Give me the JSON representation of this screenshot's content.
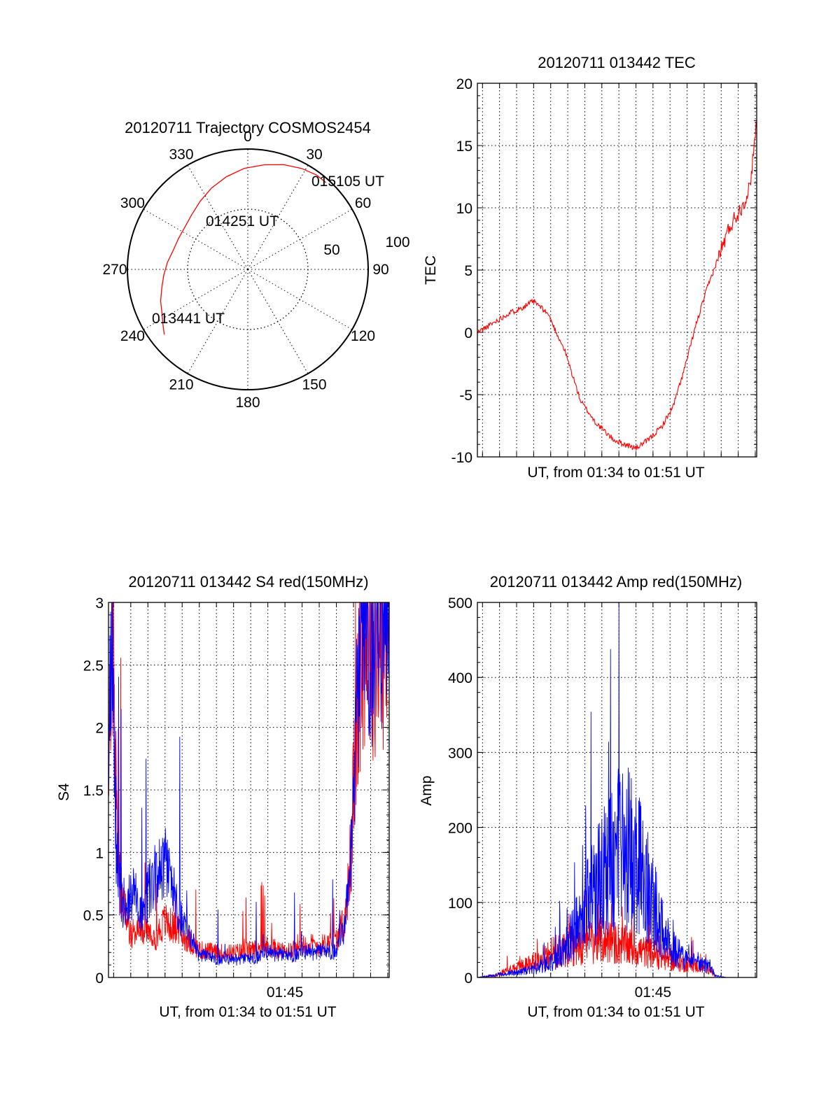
{
  "chart_data": [
    {
      "id": "polar",
      "type": "polar-trajectory",
      "title": "20120711 Trajectory COSMOS2454",
      "azimuth_labels": [
        "0",
        "30",
        "60",
        "90",
        "120",
        "150",
        "180",
        "210",
        "240",
        "270",
        "300",
        "330"
      ],
      "radius_labels": [
        "50",
        "100"
      ],
      "rmax": 100,
      "trajectory": {
        "color": "#ff0000",
        "points": [
          {
            "az": 232,
            "r": 88
          },
          {
            "az": 237,
            "r": 84
          },
          {
            "az": 243,
            "r": 80
          },
          {
            "az": 250,
            "r": 77
          },
          {
            "az": 258,
            "r": 73
          },
          {
            "az": 266,
            "r": 70
          },
          {
            "az": 275,
            "r": 67
          },
          {
            "az": 284,
            "r": 64
          },
          {
            "az": 294,
            "r": 63
          },
          {
            "az": 304,
            "r": 63
          },
          {
            "az": 314,
            "r": 65
          },
          {
            "az": 325,
            "r": 69
          },
          {
            "az": 336,
            "r": 74
          },
          {
            "az": 347,
            "r": 79
          },
          {
            "az": 358,
            "r": 84
          },
          {
            "az": 9,
            "r": 88
          },
          {
            "az": 19,
            "r": 92
          },
          {
            "az": 28,
            "r": 95
          },
          {
            "az": 36,
            "r": 97
          },
          {
            "az": 42,
            "r": 97
          }
        ]
      },
      "annotations": [
        {
          "text": "015105 UT",
          "az": 40,
          "r": 98
        },
        {
          "text": "014251 UT",
          "az": 337,
          "r": 43
        },
        {
          "text": "013441 UT",
          "az": 237,
          "r": 82
        }
      ]
    },
    {
      "id": "tec",
      "type": "line",
      "title": "20120711 013442 TEC",
      "xlabel": "UT, from 01:34 to 01:51 UT",
      "ylabel": "TEC",
      "xlim": [
        "01:34:42",
        "01:51:05"
      ],
      "ylim": [
        -10,
        20
      ],
      "yticks": [
        -10,
        -5,
        0,
        5,
        10,
        15,
        20
      ],
      "xticks": [],
      "grid": true,
      "series": [
        {
          "color": "#ff0000",
          "x": [
            "01:34:42",
            "01:35:20",
            "01:36:30",
            "01:37:20",
            "01:38:00",
            "01:38:50",
            "01:39:50",
            "01:40:45",
            "01:41:40",
            "01:42:40",
            "01:43:20",
            "01:44:00",
            "01:44:40",
            "01:45:30",
            "01:46:10",
            "01:46:50",
            "01:47:30",
            "01:48:10",
            "01:48:50",
            "01:49:30",
            "01:50:10",
            "01:50:40",
            "01:51:05"
          ],
          "y": [
            0.0,
            0.5,
            1.5,
            2.0,
            2.5,
            1.5,
            -1.5,
            -5.5,
            -7.3,
            -8.6,
            -9.0,
            -9.3,
            -8.7,
            -7.6,
            -6.0,
            -3.0,
            0.5,
            3.5,
            6.0,
            8.5,
            10.0,
            11.5,
            17.0
          ]
        }
      ]
    },
    {
      "id": "s4",
      "type": "line",
      "title": "20120711 013442 S4 red(150MHz)",
      "xlabel": "UT, from 01:34 to 01:51 UT",
      "ylabel": "S4",
      "xlim": [
        "01:34:42",
        "01:51:05"
      ],
      "ylim": [
        0,
        3
      ],
      "yticks": [
        0,
        0.5,
        1,
        1.5,
        2,
        2.5,
        3
      ],
      "xticks": [
        "01:45"
      ],
      "grid": true,
      "series": [
        {
          "color": "#ff0000",
          "x": [
            "01:34:42",
            "01:34:55",
            "01:35:10",
            "01:35:30",
            "01:36:00",
            "01:36:40",
            "01:37:20",
            "01:38:00",
            "01:38:40",
            "01:39:20",
            "01:40:00",
            "01:41:00",
            "01:42:00",
            "01:43:00",
            "01:44:00",
            "01:45:00",
            "01:46:00",
            "01:47:00",
            "01:48:00",
            "01:48:30",
            "01:48:50",
            "01:49:10",
            "01:49:40",
            "01:50:20",
            "01:51:05"
          ],
          "y": [
            1.8,
            3.0,
            1.2,
            0.6,
            0.35,
            0.4,
            0.3,
            0.45,
            0.38,
            0.3,
            0.22,
            0.2,
            0.2,
            0.22,
            0.25,
            0.2,
            0.28,
            0.25,
            0.3,
            0.45,
            1.0,
            2.0,
            2.8,
            2.6,
            2.7
          ]
        },
        {
          "color": "#0000ff",
          "x": [
            "01:34:42",
            "01:34:55",
            "01:35:10",
            "01:35:30",
            "01:36:00",
            "01:36:40",
            "01:37:20",
            "01:38:00",
            "01:38:40",
            "01:39:20",
            "01:40:00",
            "01:41:00",
            "01:42:00",
            "01:43:00",
            "01:44:00",
            "01:45:00",
            "01:46:00",
            "01:47:00",
            "01:48:00",
            "01:48:30",
            "01:48:50",
            "01:49:10",
            "01:49:40",
            "01:50:20",
            "01:51:05"
          ],
          "y": [
            1.8,
            2.6,
            1.0,
            0.6,
            0.7,
            0.55,
            0.8,
            0.9,
            0.6,
            0.35,
            0.18,
            0.15,
            0.14,
            0.15,
            0.2,
            0.17,
            0.2,
            0.2,
            0.22,
            0.4,
            0.9,
            2.0,
            2.9,
            2.8,
            2.8
          ]
        }
      ]
    },
    {
      "id": "amp",
      "type": "line",
      "title": "20120711 013442 Amp red(150MHz)",
      "xlabel": "UT, from 01:34 to 01:51 UT",
      "ylabel": "Amp",
      "xlim": [
        "01:34:42",
        "01:51:05"
      ],
      "ylim": [
        0,
        500
      ],
      "yticks": [
        0,
        100,
        200,
        300,
        400,
        500
      ],
      "xticks": [
        "01:45"
      ],
      "grid": true,
      "series": [
        {
          "color": "#ff0000",
          "x": [
            "01:34:42",
            "01:35:40",
            "01:36:20",
            "01:37:20",
            "01:38:10",
            "01:39:00",
            "01:39:40",
            "01:40:20",
            "01:41:00",
            "01:41:40",
            "01:42:20",
            "01:43:00",
            "01:43:40",
            "01:44:20",
            "01:45:00",
            "01:45:40",
            "01:46:20",
            "01:47:00",
            "01:47:40",
            "01:48:20",
            "01:48:40",
            "01:49:20",
            "01:51:05"
          ],
          "y": [
            0,
            2,
            8,
            15,
            22,
            32,
            38,
            42,
            45,
            50,
            48,
            45,
            40,
            35,
            32,
            25,
            20,
            18,
            15,
            12,
            0,
            0,
            0
          ]
        },
        {
          "color": "#0000ff",
          "x": [
            "01:34:42",
            "01:35:40",
            "01:36:20",
            "01:37:20",
            "01:38:10",
            "01:39:00",
            "01:39:40",
            "01:40:20",
            "01:41:00",
            "01:41:40",
            "01:42:20",
            "01:43:00",
            "01:43:40",
            "01:44:20",
            "01:45:00",
            "01:45:40",
            "01:46:20",
            "01:47:00",
            "01:47:40",
            "01:48:20",
            "01:48:40",
            "01:49:20",
            "01:51:05"
          ],
          "y": [
            0,
            3,
            5,
            8,
            12,
            20,
            35,
            60,
            90,
            120,
            150,
            170,
            170,
            140,
            100,
            60,
            35,
            22,
            18,
            15,
            2,
            0,
            0
          ]
        }
      ]
    }
  ]
}
